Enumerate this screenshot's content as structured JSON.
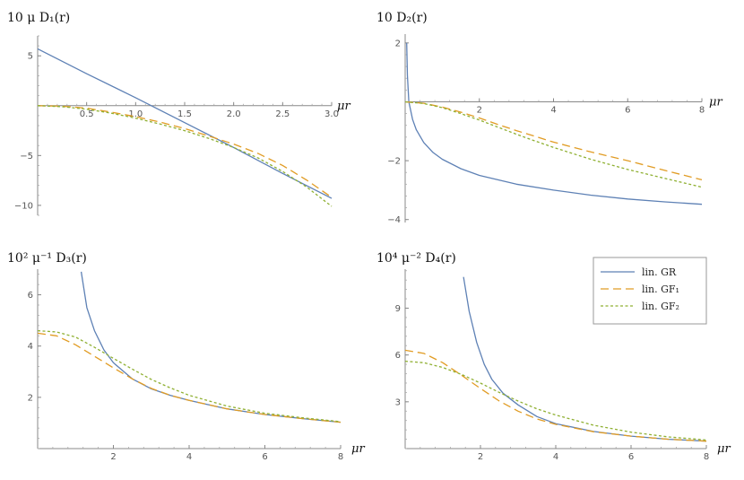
{
  "chart_data": [
    {
      "type": "line",
      "ylabel": "10 μ D₁(r)",
      "xlabel": "μr",
      "xlim": [
        0,
        3.0
      ],
      "ylim": [
        -11,
        7
      ],
      "xticks": [
        0.5,
        1.0,
        1.5,
        2.0,
        2.5,
        3.0
      ],
      "xtick_labels": [
        "0.5",
        "1.0",
        "1.5",
        "2.0",
        "2.5",
        "3.0"
      ],
      "yticks": [
        5,
        -5,
        -10
      ],
      "ytick_labels": [
        "5",
        "−5",
        "−10"
      ],
      "series": [
        {
          "key": "gr",
          "x": [
            0,
            0.5,
            1.0,
            1.5,
            2.0,
            2.5,
            3.0
          ],
          "y": [
            5.7,
            3.2,
            0.8,
            -1.7,
            -4.2,
            -6.8,
            -9.3
          ]
        },
        {
          "key": "gf1",
          "x": [
            0,
            0.25,
            0.5,
            0.75,
            1.0,
            1.25,
            1.5,
            1.75,
            2.0,
            2.25,
            2.5,
            2.75,
            3.0
          ],
          "y": [
            0,
            -0.05,
            -0.25,
            -0.65,
            -1.1,
            -1.65,
            -2.3,
            -3.05,
            -3.85,
            -4.8,
            -6.0,
            -7.5,
            -9.2
          ]
        },
        {
          "key": "gf2",
          "x": [
            0,
            0.25,
            0.5,
            0.75,
            1.0,
            1.25,
            1.5,
            1.75,
            2.0,
            2.25,
            2.5,
            2.75,
            3.0
          ],
          "y": [
            0,
            -0.1,
            -0.35,
            -0.75,
            -1.25,
            -1.85,
            -2.5,
            -3.3,
            -4.2,
            -5.25,
            -6.6,
            -8.2,
            -10.1
          ]
        }
      ]
    },
    {
      "type": "line",
      "ylabel": "10 D₂(r)",
      "xlabel": "μr",
      "xlim": [
        0,
        8
      ],
      "ylim": [
        -4.1,
        2.3
      ],
      "xticks": [
        2,
        4,
        6,
        8
      ],
      "xtick_labels": [
        "2",
        "4",
        "6",
        "8"
      ],
      "yticks": [
        2,
        -2,
        -4
      ],
      "ytick_labels": [
        "2",
        "−2",
        "−4"
      ],
      "series": [
        {
          "key": "gr",
          "x": [
            0.04,
            0.06,
            0.1,
            0.2,
            0.3,
            0.5,
            0.75,
            1.0,
            1.5,
            2.0,
            3.0,
            4.0,
            5.0,
            6.0,
            7.0,
            8.0
          ],
          "y": [
            2.0,
            0.9,
            0.0,
            -0.6,
            -0.95,
            -1.38,
            -1.72,
            -1.95,
            -2.27,
            -2.5,
            -2.8,
            -3.0,
            -3.17,
            -3.3,
            -3.4,
            -3.48
          ]
        },
        {
          "key": "gf1",
          "x": [
            0,
            0.5,
            1.0,
            1.5,
            2.0,
            2.5,
            3.0,
            3.5,
            4.0,
            5.0,
            6.0,
            7.0,
            8.0
          ],
          "y": [
            0,
            -0.05,
            -0.18,
            -0.35,
            -0.55,
            -0.77,
            -0.98,
            -1.17,
            -1.37,
            -1.7,
            -2.0,
            -2.33,
            -2.65
          ]
        },
        {
          "key": "gf2",
          "x": [
            0,
            0.5,
            1.0,
            1.5,
            2.0,
            2.5,
            3.0,
            3.5,
            4.0,
            5.0,
            6.0,
            7.0,
            8.0
          ],
          "y": [
            0,
            -0.06,
            -0.2,
            -0.4,
            -0.62,
            -0.86,
            -1.1,
            -1.33,
            -1.55,
            -1.95,
            -2.3,
            -2.6,
            -2.9
          ]
        }
      ]
    },
    {
      "type": "line",
      "ylabel": "10² μ⁻¹ D₃(r)",
      "xlabel": "μr",
      "xlim": [
        0,
        8
      ],
      "ylim": [
        0,
        7
      ],
      "xticks": [
        2,
        4,
        6,
        8
      ],
      "xtick_labels": [
        "2",
        "4",
        "6",
        "8"
      ],
      "yticks": [
        2,
        4,
        6
      ],
      "ytick_labels": [
        "2",
        "4",
        "6"
      ],
      "series": [
        {
          "key": "gr",
          "x": [
            1.15,
            1.3,
            1.5,
            1.75,
            2.0,
            2.5,
            3.0,
            3.5,
            4.0,
            5.0,
            6.0,
            7.0,
            8.0
          ],
          "y": [
            6.9,
            5.5,
            4.6,
            3.85,
            3.35,
            2.72,
            2.33,
            2.08,
            1.88,
            1.55,
            1.33,
            1.17,
            1.03
          ]
        },
        {
          "key": "gf1",
          "x": [
            0,
            0.5,
            1.0,
            1.5,
            2.0,
            2.5,
            3.0,
            3.5,
            4.0,
            5.0,
            6.0,
            7.0,
            8.0
          ],
          "y": [
            4.5,
            4.4,
            4.05,
            3.6,
            3.15,
            2.72,
            2.35,
            2.08,
            1.88,
            1.55,
            1.33,
            1.17,
            1.03
          ]
        },
        {
          "key": "gf2",
          "x": [
            0,
            0.5,
            1.0,
            1.5,
            2.0,
            2.5,
            3.0,
            3.5,
            4.0,
            5.0,
            6.0,
            7.0,
            8.0
          ],
          "y": [
            4.6,
            4.55,
            4.35,
            3.95,
            3.52,
            3.1,
            2.7,
            2.37,
            2.08,
            1.66,
            1.38,
            1.2,
            1.05
          ]
        }
      ]
    },
    {
      "type": "line",
      "ylabel": "10⁴ μ⁻² D₄(r)",
      "xlabel": "μr",
      "xlim": [
        0,
        8
      ],
      "ylim": [
        0,
        11.5
      ],
      "xticks": [
        2,
        4,
        6,
        8
      ],
      "xtick_labels": [
        "2",
        "4",
        "6",
        "8"
      ],
      "yticks": [
        3,
        6,
        9
      ],
      "ytick_labels": [
        "3",
        "6",
        "9"
      ],
      "series": [
        {
          "key": "gr",
          "x": [
            1.55,
            1.7,
            1.9,
            2.1,
            2.3,
            2.6,
            3.0,
            3.5,
            4.0,
            5.0,
            6.0,
            7.0,
            8.0
          ],
          "y": [
            11.0,
            8.8,
            6.8,
            5.4,
            4.45,
            3.55,
            2.8,
            2.05,
            1.6,
            1.1,
            0.8,
            0.6,
            0.48
          ]
        },
        {
          "key": "gf1",
          "x": [
            0,
            0.5,
            1.0,
            1.5,
            2.0,
            2.5,
            3.0,
            3.5,
            4.0,
            5.0,
            6.0,
            7.0,
            8.0
          ],
          "y": [
            6.3,
            6.1,
            5.5,
            4.7,
            3.85,
            3.05,
            2.4,
            1.9,
            1.55,
            1.08,
            0.8,
            0.6,
            0.48
          ]
        },
        {
          "key": "gf2",
          "x": [
            0,
            0.5,
            1.0,
            1.5,
            2.0,
            2.5,
            3.0,
            3.5,
            4.0,
            5.0,
            6.0,
            7.0,
            8.0
          ],
          "y": [
            5.6,
            5.5,
            5.2,
            4.75,
            4.2,
            3.6,
            3.05,
            2.55,
            2.15,
            1.5,
            1.05,
            0.75,
            0.55
          ]
        }
      ]
    }
  ],
  "legend": {
    "placement": "right of bottom-right panel",
    "entries": [
      {
        "key": "gr",
        "label": "lin. GR"
      },
      {
        "key": "gf1",
        "label": "lin. GF₁"
      },
      {
        "key": "gf2",
        "label": "lin. GF₂"
      }
    ]
  },
  "styles": {
    "gr": {
      "color": "#5e81b5",
      "dash": ""
    },
    "gf1": {
      "color": "#e19c24",
      "dash": "9,5"
    },
    "gf2": {
      "color": "#8fb032",
      "dash": "3,2.5"
    }
  }
}
